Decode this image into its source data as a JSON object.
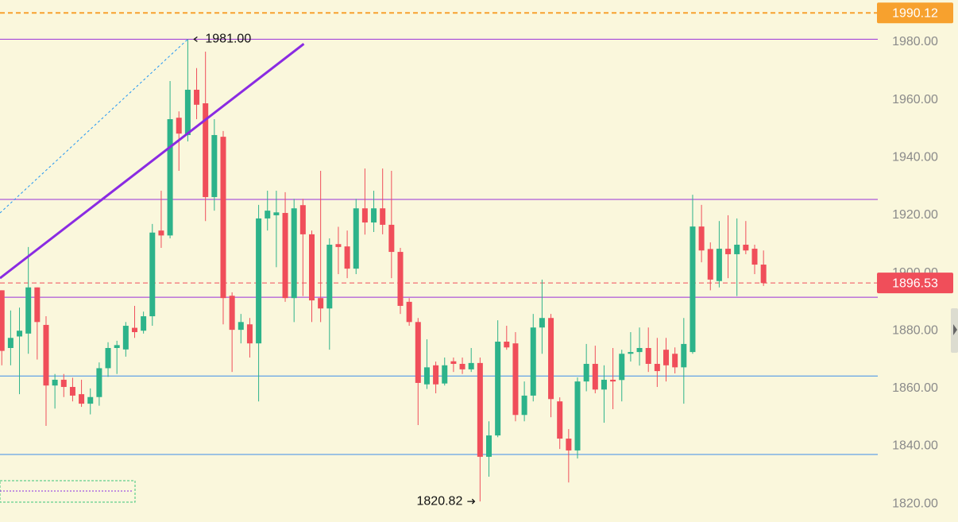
{
  "chart_data": {
    "type": "candlestick",
    "ylim": [
      1813.7,
      1994.6
    ],
    "xlim": [
      -0.2,
      98.9
    ],
    "yticks": [
      {
        "value": 1820,
        "label": "1820.00"
      },
      {
        "value": 1840,
        "label": "1840.00"
      },
      {
        "value": 1860,
        "label": "1860.00"
      },
      {
        "value": 1880,
        "label": "1880.00"
      },
      {
        "value": 1900,
        "label": "1900.00"
      },
      {
        "value": 1920,
        "label": "1920.00"
      },
      {
        "value": 1940,
        "label": "1940.00"
      },
      {
        "value": 1960,
        "label": "1960.00"
      },
      {
        "value": 1980,
        "label": "1980.00"
      }
    ],
    "up_color": "#2db38a",
    "down_color": "#f04e5a",
    "open": [
      1894,
      1874,
      1878,
      1879,
      1895,
      1882,
      1861,
      1863,
      1860.5,
      1858,
      1854.7,
      1857,
      1867,
      1874,
      1873.5,
      1881,
      1880,
      1885,
      1914.7,
      1913,
      1953.8,
      1947.8,
      1963.5,
      1958.8,
      1926.3,
      1947.2,
      1892.1,
      1880.3,
      1882.2,
      1875.6,
      1918.9,
      1920,
      1920.8,
      1891.3,
      1923.5,
      1913.4,
      1891.3,
      1887.7,
      1910,
      1909.2,
      1901.5,
      1922.4,
      1917.5,
      1922.4,
      1916.7,
      1907.3,
      1890,
      1883,
      1861.4,
      1868,
      1861.7,
      1869.4,
      1868.5,
      1866.6,
      1868.8,
      1836.3,
      1843.7,
      1876.2,
      1875.6,
      1850.8,
      1857.5,
      1881.1,
      1884.4,
      1855.5,
      1842.6,
      1838.5,
      1862.4,
      1868.5,
      1859.6,
      1863,
      1862.9,
      1872,
      1872.6,
      1874,
      1868.5,
      1873.4,
      1872,
      1867.3,
      1872.6,
      1916.1,
      1908.3,
      1897.2,
      1908.4,
      1906.5,
      1909.8,
      1908.4,
      1902.9
    ],
    "high": [
      1894,
      1887,
      1888,
      1909,
      1895,
      1885,
      1865,
      1865,
      1863.7,
      1863,
      1860,
      1869,
      1876,
      1876.5,
      1883,
      1888.6,
      1886.6,
      1917,
      1928.5,
      1966.5,
      1956,
      1981,
      1971,
      1976.7,
      1953.3,
      1949.2,
      1893.3,
      1885.8,
      1884.4,
      1923.6,
      1928.5,
      1928.5,
      1928,
      1925.7,
      1925.7,
      1914.7,
      1935.4,
      1912,
      1916,
      1914.7,
      1925.7,
      1936.2,
      1928.5,
      1936.2,
      1935.4,
      1908.7,
      1891.3,
      1884.4,
      1877,
      1869.3,
      1870.7,
      1870.7,
      1870.7,
      1874,
      1870.7,
      1848.6,
      1883.6,
      1881.7,
      1879.5,
      1862.4,
      1885.8,
      1897.7,
      1885.8,
      1856.9,
      1845.9,
      1863.8,
      1875.4,
      1874.8,
      1868,
      1874,
      1873.4,
      1879.5,
      1881.1,
      1881.1,
      1877.5,
      1877.5,
      1874.2,
      1884.4,
      1927.1,
      1923.6,
      1910.6,
      1918,
      1920,
      1918.9,
      1918,
      1909.8,
      1907.8
    ],
    "low": [
      1868,
      1868,
      1858,
      1872,
      1870,
      1847,
      1853,
      1857,
      1855.5,
      1853.6,
      1851,
      1854,
      1864,
      1865,
      1871,
      1877.5,
      1879,
      1881.7,
      1908.7,
      1912,
      1935.4,
      1945.6,
      1953.3,
      1918,
      1921.6,
      1882.2,
      1865.7,
      1875.6,
      1870.7,
      1855.5,
      1914.7,
      1902,
      1890,
      1883,
      1892,
      1883,
      1883,
      1873.4,
      1899.6,
      1898.2,
      1899.6,
      1913.3,
      1914.2,
      1913.4,
      1898.2,
      1885.8,
      1881.7,
      1847.3,
      1859.8,
      1858.3,
      1861,
      1865.7,
      1865,
      1865.7,
      1820.82,
      1829.4,
      1843.1,
      1873.4,
      1848.6,
      1848.6,
      1855.5,
      1872,
      1850,
      1839,
      1827.4,
      1835.7,
      1859,
      1858.3,
      1848.1,
      1852.8,
      1855.5,
      1869.3,
      1867.9,
      1865.7,
      1860.5,
      1862.4,
      1865.2,
      1854.7,
      1872,
      1903.7,
      1894,
      1895,
      1898.2,
      1892,
      1906.5,
      1899.6,
      1895.5
    ],
    "close": [
      1873,
      1877.5,
      1880,
      1895,
      1883,
      1861,
      1863,
      1860.5,
      1857.5,
      1854.7,
      1857,
      1867,
      1874,
      1875,
      1881.7,
      1879.5,
      1885,
      1914,
      1913,
      1953.3,
      1948.3,
      1963.5,
      1958.3,
      1926.3,
      1947.8,
      1891.3,
      1880.3,
      1883,
      1875.6,
      1918.9,
      1921.6,
      1921,
      1891.3,
      1922.4,
      1913.4,
      1890.5,
      1887.7,
      1909.8,
      1909,
      1901.5,
      1922.4,
      1917.5,
      1922.4,
      1916.7,
      1907.3,
      1888.6,
      1883,
      1861.9,
      1867.3,
      1861.4,
      1868,
      1868.5,
      1866.6,
      1868.8,
      1836.3,
      1843.7,
      1876.2,
      1874.2,
      1850.8,
      1857.5,
      1881.1,
      1884.4,
      1856.3,
      1842.6,
      1838.5,
      1862.4,
      1868.5,
      1859.6,
      1863,
      1862.4,
      1872,
      1872.6,
      1874,
      1868.5,
      1866,
      1868,
      1867.3,
      1875.4,
      1916.1,
      1907.8,
      1897.7,
      1908.4,
      1906.5,
      1909.8,
      1907.8,
      1902.9,
      1896.5
    ],
    "horizontal_lines": [
      {
        "value": 1990.12,
        "color": "#f7a12e",
        "style": "dashed",
        "width": 2,
        "price_label": true
      },
      {
        "value": 1981,
        "color": "#9b30d9",
        "style": "solid",
        "width": 1,
        "price_label": false
      },
      {
        "value": 1925.5,
        "color": "#9b30d9",
        "style": "solid",
        "width": 1,
        "price_label": false
      },
      {
        "value": 1891.6,
        "color": "#9b30d9",
        "style": "solid",
        "width": 1,
        "price_label": false
      },
      {
        "value": 1864.3,
        "color": "#3d8ee8",
        "style": "solid",
        "width": 1,
        "price_label": false
      },
      {
        "value": 1837.1,
        "color": "#3d8ee8",
        "style": "solid",
        "width": 1,
        "price_label": false
      },
      {
        "value": 1896.53,
        "color": "#f04e5a",
        "style": "dashed",
        "width": 1,
        "price_label": true
      }
    ],
    "trendlines": [
      {
        "points": [
          [
            -0.2,
            1898.2
          ],
          [
            34.1,
            1979.4
          ]
        ],
        "color": "#8a2be2",
        "style": "solid",
        "width": 3
      },
      {
        "points": [
          [
            -0.2,
            1920.8
          ],
          [
            21,
            1981
          ]
        ],
        "color": "#2196f3",
        "style": "dotted",
        "width": 1
      }
    ],
    "annotations": [
      {
        "label": "1981.00",
        "value": 1981,
        "arrow": "left"
      },
      {
        "label": "1820.82",
        "value": 1820.82,
        "arrow": "right"
      }
    ]
  }
}
